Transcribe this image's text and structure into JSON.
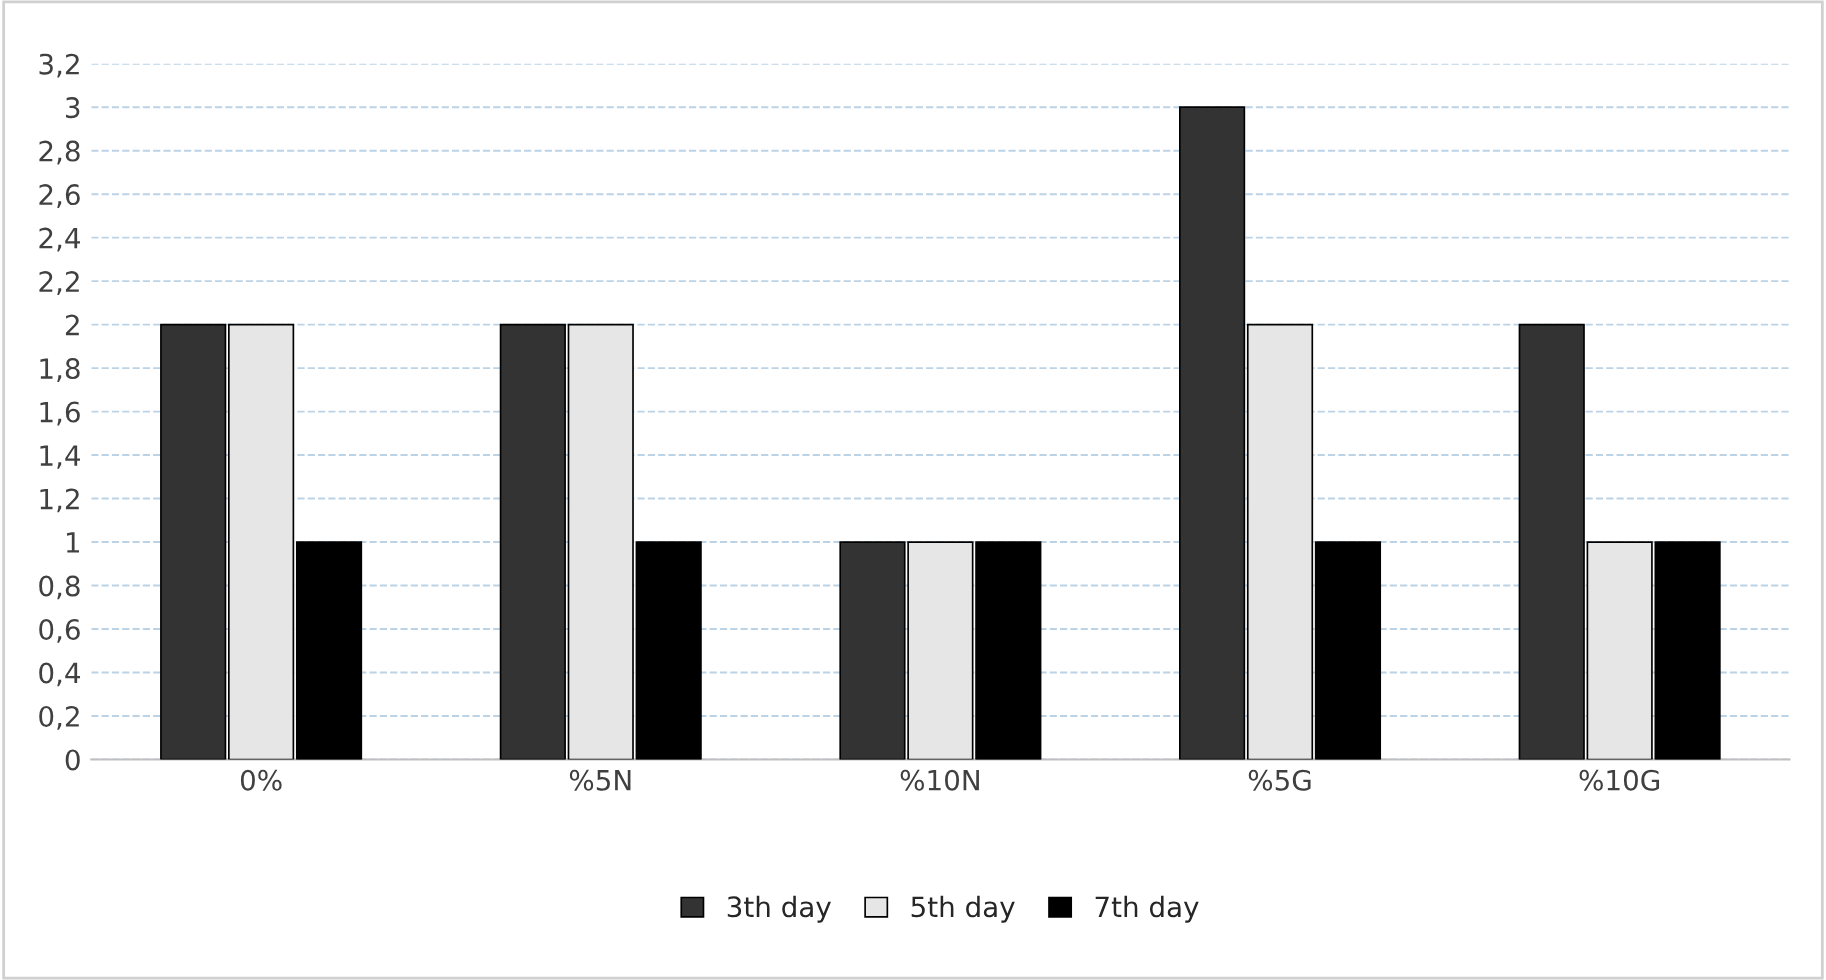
{
  "chart_data": {
    "type": "bar",
    "categories": [
      "0%",
      "%5N",
      "%10N",
      "%5G",
      "%10G"
    ],
    "series": [
      {
        "name": "3th day",
        "color": "#333333",
        "values": [
          2,
          2,
          1,
          3,
          2
        ]
      },
      {
        "name": "5th day",
        "color": "#e6e6e6",
        "values": [
          2,
          2,
          1,
          2,
          1
        ]
      },
      {
        "name": "7th day",
        "color": "#000000",
        "values": [
          1,
          1,
          1,
          1,
          1
        ]
      }
    ],
    "ylim": [
      0,
      3.2
    ],
    "yticks": [
      0,
      {
        "value": 0.2,
        "label": "0,2"
      },
      {
        "value": 0.4,
        "label": "0,4"
      },
      {
        "value": 0.6,
        "label": "0,6"
      },
      {
        "value": 0.8,
        "label": "0,8"
      },
      1,
      {
        "value": 1.2,
        "label": "1,2"
      },
      {
        "value": 1.4,
        "label": "1,4"
      },
      {
        "value": 1.6,
        "label": "1,6"
      },
      {
        "value": 1.8,
        "label": "1,8"
      },
      2,
      {
        "value": 2.2,
        "label": "2,2"
      },
      {
        "value": 2.4,
        "label": "2,4"
      },
      {
        "value": 2.6,
        "label": "2,6"
      },
      {
        "value": 2.8,
        "label": "2,8"
      },
      3,
      {
        "value": 3.2,
        "label": "3,2"
      }
    ],
    "grid": "y",
    "legend": "bottom"
  }
}
